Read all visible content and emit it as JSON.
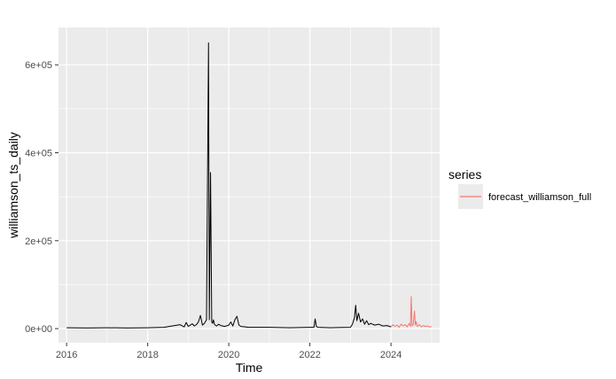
{
  "chart_data": {
    "type": "line",
    "title": "",
    "xlabel": "Time",
    "ylabel": "williamson_ts_daily",
    "xlim": [
      2015.8,
      2025.2
    ],
    "ylim": [
      -32000,
      685000
    ],
    "x_ticks": [
      2016,
      2018,
      2020,
      2022,
      2024
    ],
    "x_tick_labels": [
      "2016",
      "2018",
      "2020",
      "2022",
      "2024"
    ],
    "y_ticks": [
      0,
      200000,
      400000,
      600000
    ],
    "y_tick_labels": [
      "0e+00",
      "2e+05",
      "4e+05",
      "6e+05"
    ],
    "grid": true,
    "legend": {
      "title": "series",
      "position": "right",
      "entries": [
        "forecast_williamson_full"
      ]
    },
    "colors": {
      "panel": "#ebebeb",
      "grid": "#ffffff",
      "observed": "#000000",
      "forecast": "#f8766d"
    },
    "series": [
      {
        "color": "#000000",
        "x": [
          2016.0,
          2016.5,
          2017.0,
          2017.5,
          2018.0,
          2018.4,
          2018.6,
          2018.8,
          2018.9,
          2018.95,
          2019.0,
          2019.1,
          2019.15,
          2019.2,
          2019.25,
          2019.3,
          2019.35,
          2019.4,
          2019.45,
          2019.5,
          2019.52,
          2019.55,
          2019.58,
          2019.6,
          2019.62,
          2019.65,
          2019.7,
          2019.75,
          2019.8,
          2019.9,
          2020.0,
          2020.05,
          2020.1,
          2020.15,
          2020.2,
          2020.25,
          2020.3,
          2020.5,
          2021.0,
          2021.5,
          2022.0,
          2022.1,
          2022.13,
          2022.16,
          2022.2,
          2022.5,
          2023.0,
          2023.05,
          2023.1,
          2023.13,
          2023.16,
          2023.2,
          2023.25,
          2023.3,
          2023.35,
          2023.4,
          2023.45,
          2023.5,
          2023.6,
          2023.7,
          2023.8,
          2023.9,
          2024.0
        ],
        "y": [
          2000,
          1500,
          2000,
          1500,
          2000,
          3000,
          6000,
          9000,
          4000,
          14000,
          5000,
          11000,
          6000,
          9000,
          15000,
          30000,
          8000,
          12000,
          20000,
          650000,
          20000,
          355000,
          15000,
          12000,
          20000,
          9000,
          6000,
          10000,
          7000,
          5000,
          8000,
          15000,
          6000,
          20000,
          28000,
          8000,
          5000,
          3000,
          3000,
          2000,
          3000,
          3000,
          22000,
          5000,
          3000,
          2000,
          3000,
          10000,
          25000,
          53000,
          18000,
          35000,
          15000,
          22000,
          10000,
          18000,
          9000,
          12000,
          8000,
          10000,
          6000,
          7000,
          4000
        ]
      },
      {
        "name": "forecast_williamson_full",
        "color": "#f8766d",
        "x": [
          2024.0,
          2024.05,
          2024.1,
          2024.15,
          2024.2,
          2024.25,
          2024.3,
          2024.35,
          2024.4,
          2024.45,
          2024.48,
          2024.5,
          2024.52,
          2024.55,
          2024.58,
          2024.6,
          2024.62,
          2024.65,
          2024.7,
          2024.75,
          2024.8,
          2024.85,
          2024.9,
          2024.95,
          2025.0
        ],
        "y": [
          4000,
          9000,
          5000,
          8000,
          3000,
          10000,
          6000,
          9000,
          4000,
          12000,
          5000,
          73000,
          6000,
          9000,
          40000,
          8000,
          16000,
          5000,
          9000,
          4000,
          7000,
          5000,
          6000,
          4000,
          4500
        ]
      }
    ]
  }
}
